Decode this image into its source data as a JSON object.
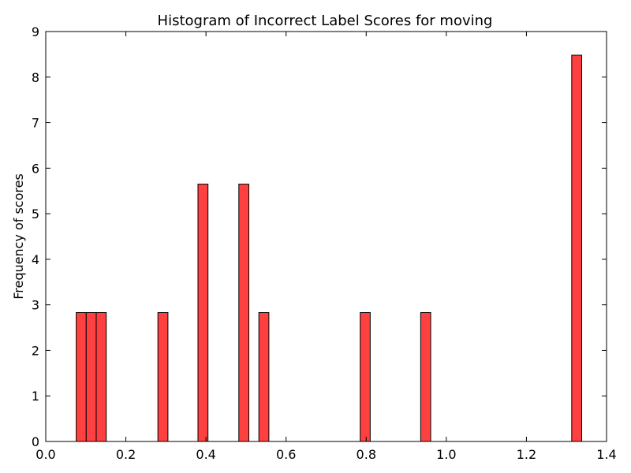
{
  "chart_data": {
    "type": "bar",
    "title": "Histogram of Incorrect Label Scores for moving",
    "xlabel": "",
    "ylabel": "Frequency of scores",
    "xlim": [
      0.0,
      1.4
    ],
    "ylim": [
      0,
      9
    ],
    "x_ticks": [
      "0.0",
      "0.2",
      "0.4",
      "0.6",
      "0.8",
      "1.0",
      "1.2",
      "1.4"
    ],
    "y_ticks": [
      "0",
      "1",
      "2",
      "3",
      "4",
      "5",
      "6",
      "7",
      "8",
      "9"
    ],
    "bins": [
      {
        "x_start": 0.076,
        "x_end": 0.101,
        "value": 2.83
      },
      {
        "x_start": 0.101,
        "x_end": 0.126,
        "value": 2.83
      },
      {
        "x_start": 0.126,
        "x_end": 0.151,
        "value": 2.83
      },
      {
        "x_start": 0.28,
        "x_end": 0.305,
        "value": 2.83
      },
      {
        "x_start": 0.38,
        "x_end": 0.405,
        "value": 5.65
      },
      {
        "x_start": 0.482,
        "x_end": 0.507,
        "value": 5.65
      },
      {
        "x_start": 0.532,
        "x_end": 0.557,
        "value": 2.83
      },
      {
        "x_start": 0.785,
        "x_end": 0.81,
        "value": 2.83
      },
      {
        "x_start": 0.936,
        "x_end": 0.961,
        "value": 2.83
      },
      {
        "x_start": 1.313,
        "x_end": 1.338,
        "value": 8.48
      }
    ],
    "bar_color": "#ff4040",
    "bar_edge_color": "#000000",
    "grid": false,
    "legend": "none"
  }
}
